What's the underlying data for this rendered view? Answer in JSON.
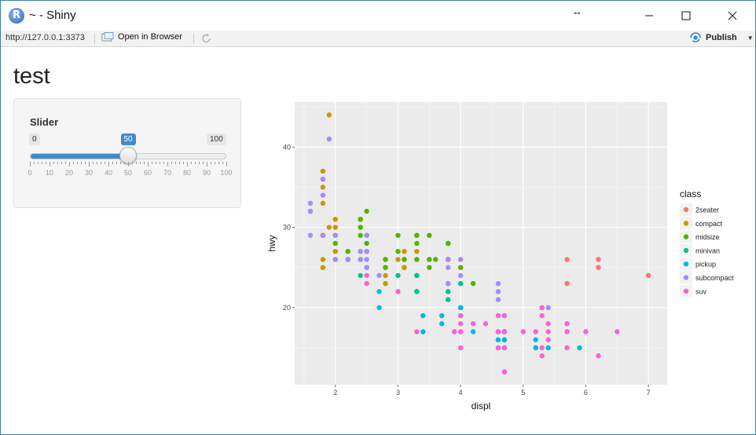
{
  "window": {
    "title": "~ - Shiny",
    "icon": "R-logo-icon",
    "resize_glyph": "↔"
  },
  "toolbar": {
    "url": "http://127.0.0.1:3373",
    "open_browser_label": "Open in Browser",
    "publish_label": "Publish"
  },
  "page": {
    "title": "test"
  },
  "slider": {
    "label": "Slider",
    "min": 0,
    "max": 100,
    "value": 50,
    "min_label": "0",
    "max_label": "100",
    "value_label": "50",
    "tick_labels": [
      "0",
      "10",
      "20",
      "30",
      "40",
      "50",
      "60",
      "70",
      "80",
      "90",
      "100"
    ],
    "accent": "#428bca"
  },
  "chart_data": {
    "type": "scatter",
    "xlabel": "displ",
    "ylabel": "hwy",
    "xlim": [
      1.35,
      7.3
    ],
    "ylim": [
      10.4,
      45.6
    ],
    "x_ticks": [
      "2",
      "3",
      "4",
      "5",
      "6",
      "7"
    ],
    "y_ticks": [
      "20",
      "30",
      "40"
    ],
    "grid": true,
    "legend": {
      "title": "class",
      "position": "right"
    },
    "series": [
      {
        "name": "2seater",
        "color": "#F8766D",
        "points": [
          [
            5.7,
            26
          ],
          [
            5.7,
            23
          ],
          [
            6.2,
            26
          ],
          [
            6.2,
            25
          ],
          [
            7.0,
            24
          ]
        ]
      },
      {
        "name": "compact",
        "color": "#C49A00",
        "points": [
          [
            1.8,
            29
          ],
          [
            1.8,
            29
          ],
          [
            2.0,
            31
          ],
          [
            2.0,
            30
          ],
          [
            2.8,
            26
          ],
          [
            2.8,
            26
          ],
          [
            3.1,
            27
          ],
          [
            1.8,
            26
          ],
          [
            1.8,
            25
          ],
          [
            2.0,
            28
          ],
          [
            2.0,
            27
          ],
          [
            2.8,
            25
          ],
          [
            2.8,
            25
          ],
          [
            3.1,
            25
          ],
          [
            3.1,
            25
          ],
          [
            2.2,
            26
          ],
          [
            2.2,
            27
          ],
          [
            2.4,
            31
          ],
          [
            2.4,
            31
          ],
          [
            3.0,
            26
          ],
          [
            3.3,
            27
          ],
          [
            1.8,
            29
          ],
          [
            1.8,
            29
          ],
          [
            2.0,
            27
          ],
          [
            2.0,
            29
          ],
          [
            2.8,
            24
          ],
          [
            1.9,
            44
          ],
          [
            2.0,
            29
          ],
          [
            2.0,
            26
          ],
          [
            2.5,
            29
          ],
          [
            1.8,
            37
          ],
          [
            1.8,
            35
          ],
          [
            2.0,
            29
          ],
          [
            2.0,
            26
          ],
          [
            2.5,
            27
          ],
          [
            2.5,
            25
          ],
          [
            1.8,
            33
          ],
          [
            2.0,
            30
          ],
          [
            1.9,
            30
          ],
          [
            2.0,
            29
          ],
          [
            2.8,
            23
          ]
        ]
      },
      {
        "name": "midsize",
        "color": "#53B400",
        "points": [
          [
            2.4,
            27
          ],
          [
            2.4,
            30
          ],
          [
            3.1,
            26
          ],
          [
            3.5,
            29
          ],
          [
            3.6,
            26
          ],
          [
            3.1,
            26
          ],
          [
            3.8,
            28
          ],
          [
            3.8,
            26
          ],
          [
            4.0,
            25
          ],
          [
            3.3,
            28
          ],
          [
            3.3,
            26
          ],
          [
            3.8,
            26
          ],
          [
            2.2,
            26
          ],
          [
            2.2,
            27
          ],
          [
            3.0,
            27
          ],
          [
            3.0,
            29
          ],
          [
            3.3,
            29
          ],
          [
            3.3,
            29
          ],
          [
            3.3,
            26
          ],
          [
            2.4,
            29
          ],
          [
            2.4,
            31
          ],
          [
            2.5,
            32
          ],
          [
            2.5,
            27
          ],
          [
            3.5,
            29
          ],
          [
            3.5,
            25
          ],
          [
            3.5,
            26
          ],
          [
            2.0,
            28
          ],
          [
            2.0,
            26
          ],
          [
            2.8,
            26
          ],
          [
            2.8,
            25
          ],
          [
            2.4,
            26
          ],
          [
            2.4,
            26
          ],
          [
            3.1,
            26
          ],
          [
            3.5,
            26
          ],
          [
            3.8,
            26
          ],
          [
            3.8,
            28
          ],
          [
            2.4,
            30
          ],
          [
            2.4,
            31
          ],
          [
            2.5,
            29
          ],
          [
            2.5,
            28
          ],
          [
            4.2,
            23
          ]
        ]
      },
      {
        "name": "minivan",
        "color": "#00C094",
        "points": [
          [
            2.4,
            24
          ],
          [
            3.0,
            24
          ],
          [
            3.3,
            22
          ],
          [
            3.3,
            24
          ],
          [
            3.3,
            24
          ],
          [
            3.3,
            22
          ],
          [
            3.8,
            22
          ],
          [
            3.8,
            21
          ],
          [
            3.8,
            23
          ],
          [
            4.0,
            23
          ],
          [
            3.3,
            22
          ]
        ]
      },
      {
        "name": "pickup",
        "color": "#00B6EB",
        "points": [
          [
            2.7,
            20
          ],
          [
            2.7,
            22
          ],
          [
            3.4,
            17
          ],
          [
            3.4,
            19
          ],
          [
            4.0,
            20
          ],
          [
            4.7,
            17
          ],
          [
            4.7,
            16
          ],
          [
            4.7,
            16
          ],
          [
            5.2,
            15
          ],
          [
            5.2,
            15
          ],
          [
            3.9,
            17
          ],
          [
            4.7,
            17
          ],
          [
            4.7,
            16
          ],
          [
            4.7,
            15
          ],
          [
            5.2,
            15
          ],
          [
            5.7,
            17
          ],
          [
            5.9,
            15
          ],
          [
            4.7,
            19
          ],
          [
            4.7,
            17
          ],
          [
            4.7,
            12
          ],
          [
            5.2,
            17
          ],
          [
            5.2,
            16
          ],
          [
            4.0,
            19
          ],
          [
            4.0,
            20
          ],
          [
            4.6,
            17
          ],
          [
            4.6,
            16
          ],
          [
            5.4,
            15
          ],
          [
            3.7,
            18
          ],
          [
            3.7,
            19
          ],
          [
            4.2,
            17
          ],
          [
            4.6,
            17
          ],
          [
            4.6,
            16
          ]
        ]
      },
      {
        "name": "subcompact",
        "color": "#A58AFF",
        "points": [
          [
            3.8,
            26
          ],
          [
            3.8,
            25
          ],
          [
            4.0,
            26
          ],
          [
            4.0,
            24
          ],
          [
            4.6,
            21
          ],
          [
            4.6,
            22
          ],
          [
            4.6,
            23
          ],
          [
            5.4,
            20
          ],
          [
            1.6,
            32
          ],
          [
            1.6,
            33
          ],
          [
            1.6,
            32
          ],
          [
            1.6,
            29
          ],
          [
            1.6,
            32
          ],
          [
            1.8,
            34
          ],
          [
            1.8,
            36
          ],
          [
            1.8,
            36
          ],
          [
            2.0,
            29
          ],
          [
            2.4,
            26
          ],
          [
            2.4,
            27
          ],
          [
            2.5,
            26
          ],
          [
            2.5,
            29
          ],
          [
            1.9,
            41
          ],
          [
            2.0,
            29
          ],
          [
            2.0,
            26
          ],
          [
            2.2,
            26
          ],
          [
            2.5,
            27
          ],
          [
            2.7,
            24
          ],
          [
            1.8,
            29
          ],
          [
            2.5,
            25
          ],
          [
            3.8,
            23
          ]
        ]
      },
      {
        "name": "suv",
        "color": "#FB61D7",
        "points": [
          [
            5.3,
            20
          ],
          [
            5.3,
            15
          ],
          [
            5.3,
            20
          ],
          [
            5.7,
            17
          ],
          [
            6.0,
            17
          ],
          [
            5.7,
            15
          ],
          [
            5.7,
            18
          ],
          [
            6.2,
            14
          ],
          [
            6.5,
            17
          ],
          [
            4.0,
            17
          ],
          [
            4.0,
            15
          ],
          [
            4.6,
            17
          ],
          [
            5.0,
            17
          ],
          [
            4.7,
            19
          ],
          [
            4.7,
            17
          ],
          [
            4.7,
            12
          ],
          [
            5.2,
            17
          ],
          [
            5.7,
            18
          ],
          [
            4.6,
            19
          ],
          [
            5.4,
            17
          ],
          [
            5.4,
            16
          ],
          [
            4.0,
            19
          ],
          [
            4.0,
            18
          ],
          [
            4.6,
            17
          ],
          [
            5.0,
            17
          ],
          [
            3.3,
            17
          ],
          [
            4.2,
            18
          ],
          [
            4.4,
            18
          ],
          [
            5.4,
            18
          ],
          [
            2.5,
            23
          ],
          [
            2.5,
            24
          ],
          [
            3.0,
            22
          ],
          [
            3.9,
            17
          ],
          [
            4.0,
            17
          ],
          [
            4.7,
            15
          ],
          [
            5.3,
            14
          ],
          [
            5.7,
            18
          ],
          [
            5.3,
            19
          ],
          [
            4.6,
            15
          ]
        ]
      }
    ]
  }
}
